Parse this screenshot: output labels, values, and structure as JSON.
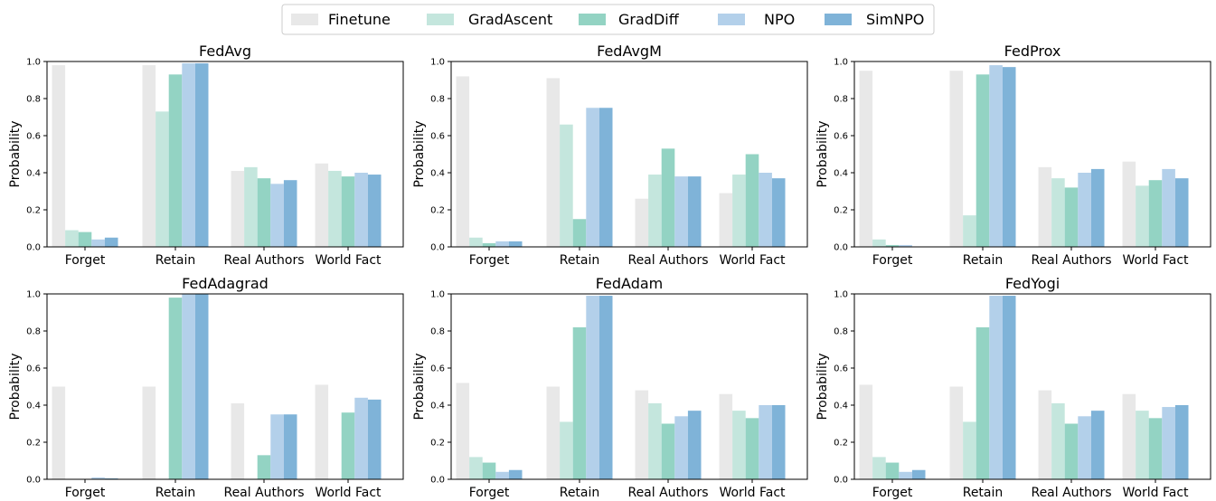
{
  "legend": {
    "entries": [
      {
        "name": "Finetune",
        "color": "#e8e8e8"
      },
      {
        "name": "GradAscent",
        "color": "#c4e6dd"
      },
      {
        "name": "GradDiff",
        "color": "#93d3c3"
      },
      {
        "name": "NPO",
        "color": "#b3d0ea"
      },
      {
        "name": "SimNPO",
        "color": "#7fb3d8"
      }
    ]
  },
  "chart_data": [
    {
      "type": "bar",
      "title": "FedAvg",
      "ylabel": "Probability",
      "xlabel": "",
      "ylim": [
        0,
        1.0
      ],
      "yticks": [
        "0.0",
        "0.2",
        "0.4",
        "0.6",
        "0.8",
        "1.0"
      ],
      "categories": [
        "Forget",
        "Retain",
        "Real Authors",
        "World Fact"
      ],
      "series": [
        {
          "name": "Finetune",
          "values": [
            0.98,
            0.98,
            0.41,
            0.45
          ]
        },
        {
          "name": "GradAscent",
          "values": [
            0.09,
            0.73,
            0.43,
            0.41
          ]
        },
        {
          "name": "GradDiff",
          "values": [
            0.08,
            0.93,
            0.37,
            0.38
          ]
        },
        {
          "name": "NPO",
          "values": [
            0.04,
            0.99,
            0.34,
            0.4
          ]
        },
        {
          "name": "SimNPO",
          "values": [
            0.05,
            0.99,
            0.36,
            0.39
          ]
        }
      ]
    },
    {
      "type": "bar",
      "title": "FedAvgM",
      "ylabel": "Probability",
      "xlabel": "",
      "ylim": [
        0,
        1.0
      ],
      "yticks": [
        "0.0",
        "0.2",
        "0.4",
        "0.6",
        "0.8",
        "1.0"
      ],
      "categories": [
        "Forget",
        "Retain",
        "Real Authors",
        "World Fact"
      ],
      "series": [
        {
          "name": "Finetune",
          "values": [
            0.92,
            0.91,
            0.26,
            0.29
          ]
        },
        {
          "name": "GradAscent",
          "values": [
            0.05,
            0.66,
            0.39,
            0.39
          ]
        },
        {
          "name": "GradDiff",
          "values": [
            0.02,
            0.15,
            0.53,
            0.5
          ]
        },
        {
          "name": "NPO",
          "values": [
            0.03,
            0.75,
            0.38,
            0.4
          ]
        },
        {
          "name": "SimNPO",
          "values": [
            0.03,
            0.75,
            0.38,
            0.37
          ]
        }
      ]
    },
    {
      "type": "bar",
      "title": "FedProx",
      "ylabel": "Probability",
      "xlabel": "",
      "ylim": [
        0,
        1.0
      ],
      "yticks": [
        "0.0",
        "0.2",
        "0.4",
        "0.6",
        "0.8",
        "1.0"
      ],
      "categories": [
        "Forget",
        "Retain",
        "Real Authors",
        "World Fact"
      ],
      "series": [
        {
          "name": "Finetune",
          "values": [
            0.95,
            0.95,
            0.43,
            0.46
          ]
        },
        {
          "name": "GradAscent",
          "values": [
            0.04,
            0.17,
            0.37,
            0.33
          ]
        },
        {
          "name": "GradDiff",
          "values": [
            0.01,
            0.93,
            0.32,
            0.36
          ]
        },
        {
          "name": "NPO",
          "values": [
            0.01,
            0.98,
            0.4,
            0.42
          ]
        },
        {
          "name": "SimNPO",
          "values": [
            0.0,
            0.97,
            0.42,
            0.37
          ]
        }
      ]
    },
    {
      "type": "bar",
      "title": "FedAdagrad",
      "ylabel": "Probability",
      "xlabel": "",
      "ylim": [
        0,
        1.0
      ],
      "yticks": [
        "0.0",
        "0.2",
        "0.4",
        "0.6",
        "0.8",
        "1.0"
      ],
      "categories": [
        "Forget",
        "Retain",
        "Real Authors",
        "World Fact"
      ],
      "series": [
        {
          "name": "Finetune",
          "values": [
            0.5,
            0.5,
            0.41,
            0.51
          ]
        },
        {
          "name": "GradAscent",
          "values": [
            0.0,
            0.0,
            0.0,
            0.0
          ]
        },
        {
          "name": "GradDiff",
          "values": [
            0.0,
            0.98,
            0.13,
            0.36
          ]
        },
        {
          "name": "NPO",
          "values": [
            0.01,
            1.0,
            0.35,
            0.44
          ]
        },
        {
          "name": "SimNPO",
          "values": [
            0.005,
            1.0,
            0.35,
            0.43
          ]
        }
      ]
    },
    {
      "type": "bar",
      "title": "FedAdam",
      "ylabel": "Probability",
      "xlabel": "",
      "ylim": [
        0,
        1.0
      ],
      "yticks": [
        "0.0",
        "0.2",
        "0.4",
        "0.6",
        "0.8",
        "1.0"
      ],
      "categories": [
        "Forget",
        "Retain",
        "Real Authors",
        "World Fact"
      ],
      "series": [
        {
          "name": "Finetune",
          "values": [
            0.52,
            0.5,
            0.48,
            0.46
          ]
        },
        {
          "name": "GradAscent",
          "values": [
            0.12,
            0.31,
            0.41,
            0.37
          ]
        },
        {
          "name": "GradDiff",
          "values": [
            0.09,
            0.82,
            0.3,
            0.33
          ]
        },
        {
          "name": "NPO",
          "values": [
            0.04,
            0.99,
            0.34,
            0.4
          ]
        },
        {
          "name": "SimNPO",
          "values": [
            0.05,
            0.99,
            0.37,
            0.4
          ]
        }
      ]
    },
    {
      "type": "bar",
      "title": "FedYogi",
      "ylabel": "Probability",
      "xlabel": "",
      "ylim": [
        0,
        1.0
      ],
      "yticks": [
        "0.0",
        "0.2",
        "0.4",
        "0.6",
        "0.8",
        "1.0"
      ],
      "categories": [
        "Forget",
        "Retain",
        "Real Authors",
        "World Fact"
      ],
      "series": [
        {
          "name": "Finetune",
          "values": [
            0.51,
            0.5,
            0.48,
            0.46
          ]
        },
        {
          "name": "GradAscent",
          "values": [
            0.12,
            0.31,
            0.41,
            0.37
          ]
        },
        {
          "name": "GradDiff",
          "values": [
            0.09,
            0.82,
            0.3,
            0.33
          ]
        },
        {
          "name": "NPO",
          "values": [
            0.04,
            0.99,
            0.34,
            0.39
          ]
        },
        {
          "name": "SimNPO",
          "values": [
            0.05,
            0.99,
            0.37,
            0.4
          ]
        }
      ]
    }
  ]
}
